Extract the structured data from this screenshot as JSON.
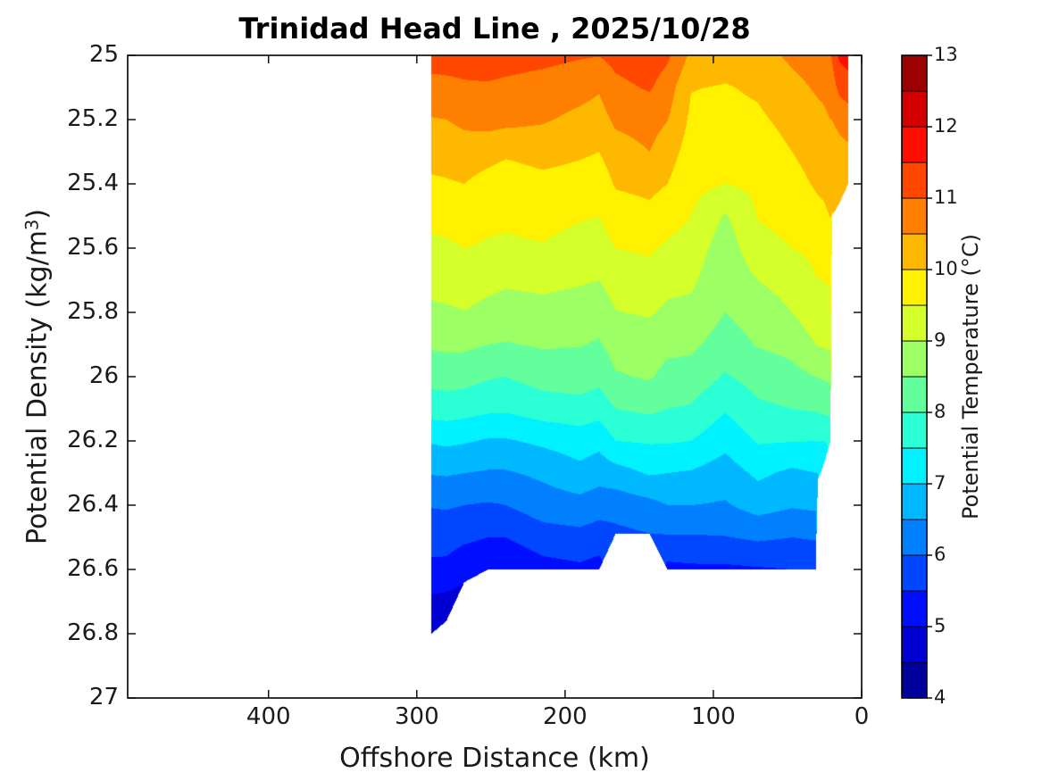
{
  "chart_data": {
    "type": "heatmap",
    "subtype": "filled-contour-section",
    "title": "Trinidad Head Line , 2025/10/28",
    "xlabel": "Offshore Distance (km)",
    "ylabel": {
      "pre": "Potential Density (kg/m",
      "sup": "3",
      "post": ")"
    },
    "x_range": [
      0,
      495
    ],
    "x_reversed": true,
    "x_ticks": [
      400,
      300,
      200,
      100,
      0
    ],
    "y_range": [
      25,
      27
    ],
    "y_increases_downward": true,
    "y_ticks": [
      "25",
      "25.2",
      "25.4",
      "25.6",
      "25.8",
      "26",
      "26.2",
      "26.4",
      "26.6",
      "26.8",
      "27"
    ],
    "grid": false,
    "frame_color": "#000000",
    "text_color": "#1a1a1a",
    "colorbar": {
      "label": "Potential Temperature (°C)",
      "range": [
        4,
        13
      ],
      "band_step": 0.5,
      "ticks": [
        4,
        5,
        6,
        7,
        8,
        9,
        10,
        11,
        12,
        13
      ],
      "colors": [
        "#00009C",
        "#0000D5",
        "#000EFF",
        "#0047FF",
        "#0080FF",
        "#00B8FF",
        "#00F1FF",
        "#2AFFD5",
        "#63FF9C",
        "#9CFF63",
        "#D5FF2A",
        "#FFF100",
        "#FFB800",
        "#FF8000",
        "#FF4700",
        "#FF0E00",
        "#D50000",
        "#9C0000"
      ]
    },
    "grid_note": "stations give offshore distance (km), seafloor cutoff density (bottom), and potential temperature (degC) sampled on a density grid starting 25.0 step 0.1",
    "rho_grid": {
      "start": 25.0,
      "step": 0.1
    },
    "stations": [
      {
        "km": 290,
        "bottom": 26.8,
        "temps": [
          11.2,
          10.85,
          10.47,
          10.19,
          9.92,
          9.63,
          9.39,
          9.16,
          8.9,
          8.57,
          8.17,
          7.73,
          7.05,
          6.53,
          6.03,
          5.7,
          5.37,
          4.89,
          4.6
        ]
      },
      {
        "km": 280,
        "bottom": 26.76,
        "temps": [
          11.2,
          10.88,
          10.5,
          10.22,
          9.95,
          9.66,
          9.42,
          9.2,
          8.93,
          8.6,
          8.2,
          7.75,
          7.1,
          6.55,
          6.05,
          5.72,
          5.35,
          4.85,
          4.6
        ]
      },
      {
        "km": 268,
        "bottom": 26.64,
        "temps": [
          11.22,
          10.93,
          10.6,
          10.3,
          10.0,
          9.75,
          9.5,
          9.28,
          8.98,
          8.6,
          8.18,
          7.7,
          7.05,
          6.5,
          6.0,
          5.6,
          5.15,
          4.8
        ]
      },
      {
        "km": 252,
        "bottom": 26.6,
        "temps": [
          11.22,
          10.95,
          10.68,
          10.2,
          9.8,
          9.6,
          9.45,
          9.15,
          8.85,
          8.5,
          8.05,
          7.6,
          6.95,
          6.45,
          5.95,
          5.5,
          5.05
        ]
      },
      {
        "km": 240,
        "bottom": 26.6,
        "temps": [
          11.2,
          10.9,
          10.65,
          10.08,
          9.72,
          9.58,
          9.42,
          9.08,
          8.78,
          8.47,
          8.0,
          7.58,
          6.95,
          6.45,
          6.0,
          5.5,
          5.05
        ]
      },
      {
        "km": 215,
        "bottom": 26.6,
        "temps": [
          11.15,
          10.8,
          10.55,
          10.2,
          9.85,
          9.67,
          9.46,
          9.12,
          8.85,
          8.55,
          8.2,
          7.75,
          7.1,
          6.6,
          6.25,
          5.78,
          5.3
        ]
      },
      {
        "km": 190,
        "bottom": 26.6,
        "temps": [
          11.05,
          10.67,
          10.38,
          10.08,
          9.77,
          9.55,
          9.3,
          9.05,
          8.78,
          8.52,
          8.25,
          7.8,
          7.25,
          6.85,
          6.32,
          5.85,
          5.4
        ]
      },
      {
        "km": 177,
        "bottom": 26.6,
        "temps": [
          11.02,
          10.55,
          10.3,
          10.0,
          9.72,
          9.5,
          9.28,
          9.0,
          8.7,
          8.45,
          8.15,
          7.7,
          7.15,
          6.7,
          6.22,
          5.75,
          5.3
        ]
      },
      {
        "km": 166,
        "bottom": 26.49,
        "temps": [
          11.15,
          10.88,
          10.6,
          10.28,
          10.05,
          9.75,
          9.5,
          9.22,
          8.98,
          8.7,
          8.45,
          8.0,
          7.5,
          6.8,
          6.2,
          5.85
        ]
      },
      {
        "km": 143,
        "bottom": 26.49,
        "temps": [
          11.3,
          11.05,
          10.7,
          10.5,
          10.14,
          9.86,
          9.57,
          9.3,
          9.05,
          8.75,
          8.55,
          8.1,
          7.55,
          7.05,
          6.35,
          5.95
        ]
      },
      {
        "km": 131,
        "bottom": 26.6,
        "temps": [
          11.1,
          10.75,
          10.52,
          10.22,
          10.0,
          9.7,
          9.42,
          9.15,
          8.9,
          8.62,
          8.35,
          8.0,
          7.55,
          7.0,
          6.5,
          5.95,
          5.35
        ]
      },
      {
        "km": 115,
        "bottom": 26.6,
        "temps": [
          10.4,
          10.02,
          9.9,
          9.78,
          9.65,
          9.5,
          9.3,
          9.1,
          8.85,
          8.6,
          8.3,
          7.95,
          7.5,
          6.95,
          6.5,
          5.95,
          5.4
        ]
      },
      {
        "km": 92,
        "bottom": 26.6,
        "temps": [
          10.2,
          9.97,
          9.85,
          9.7,
          9.5,
          8.95,
          8.72,
          8.58,
          8.5,
          8.28,
          7.95,
          7.55,
          7.15,
          6.75,
          6.45,
          5.98,
          5.4
        ]
      },
      {
        "km": 70,
        "bottom": 26.6,
        "temps": [
          10.3,
          10.07,
          9.92,
          9.75,
          9.6,
          9.52,
          9.35,
          9.0,
          8.72,
          8.53,
          8.2,
          7.9,
          7.55,
          7.1,
          6.7,
          6.08,
          5.45
        ]
      },
      {
        "km": 47,
        "bottom": 26.6,
        "temps": [
          10.6,
          10.35,
          10.15,
          10.0,
          9.82,
          9.65,
          9.5,
          9.2,
          9.0,
          8.65,
          8.35,
          8.0,
          7.52,
          6.9,
          6.55,
          6.0,
          5.5
        ]
      },
      {
        "km": 31,
        "bottom": 26.6,
        "temps": [
          10.75,
          10.55,
          10.35,
          10.2,
          10.05,
          9.85,
          9.6,
          9.48,
          9.3,
          9.0,
          8.5,
          8.05,
          7.5,
          7.0,
          6.6,
          6.05,
          5.55
        ]
      },
      {
        "km": 29.5,
        "bottom": 26.32,
        "temps": [
          10.8,
          10.57,
          10.37,
          10.22,
          10.07,
          9.87,
          9.62,
          9.49,
          9.3,
          9.02,
          8.52,
          8.07,
          7.52,
          7.0
        ]
      },
      {
        "km": 26,
        "bottom": 26.28,
        "temps": [
          10.85,
          10.6,
          10.4,
          10.25,
          10.1,
          9.9,
          9.65,
          9.5,
          9.3,
          9.05,
          8.55,
          8.1,
          7.5,
          7.0
        ]
      },
      {
        "km": 21,
        "bottom": 26.2,
        "temps": [
          11.0,
          10.72,
          10.5,
          10.33,
          10.18,
          10.02,
          9.72,
          9.55,
          9.35,
          9.1,
          8.6,
          8.15,
          7.55
        ]
      },
      {
        "km": 20,
        "bottom": 25.5,
        "temps": [
          11.05,
          10.75,
          10.5,
          10.32,
          10.17,
          9.97
        ]
      },
      {
        "km": 15,
        "bottom": 25.46,
        "temps": [
          11.6,
          11.15,
          10.6,
          10.38,
          10.2,
          10.05
        ]
      },
      {
        "km": 9,
        "bottom": 25.4,
        "temps": [
          11.7,
          11.3,
          10.7,
          10.42,
          10.22
        ]
      }
    ]
  }
}
